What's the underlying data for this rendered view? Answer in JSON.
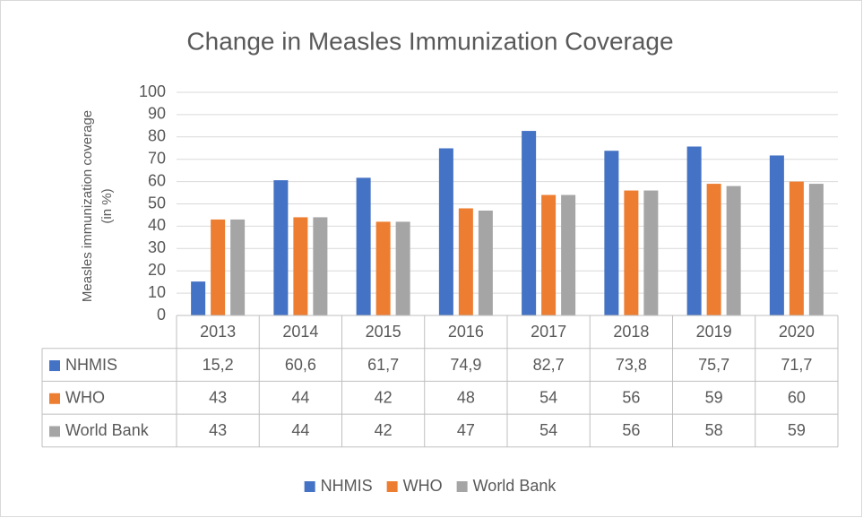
{
  "chart_data": {
    "type": "bar",
    "title": "Change in Measles Immunization Coverage",
    "y_label": [
      "Measles immunization coverage",
      "(in %)"
    ],
    "categories": [
      "2013",
      "2014",
      "2015",
      "2016",
      "2017",
      "2018",
      "2019",
      "2020"
    ],
    "series": [
      {
        "name": "NHMIS",
        "color": "#4472c4",
        "values": [
          15.2,
          60.6,
          61.7,
          74.9,
          82.7,
          73.8,
          75.7,
          71.7
        ],
        "value_labels": [
          "15,2",
          "60,6",
          "61,7",
          "74,9",
          "82,7",
          "73,8",
          "75,7",
          "71,7"
        ]
      },
      {
        "name": "WHO",
        "color": "#ed7d31",
        "values": [
          43,
          44,
          42,
          48,
          54,
          56,
          59,
          60
        ]
      },
      {
        "name": "World Bank",
        "color": "#a5a5a5",
        "values": [
          43,
          44,
          42,
          47,
          54,
          56,
          58,
          59
        ]
      }
    ],
    "ylim": [
      0,
      100
    ],
    "yticks": [
      0,
      10,
      20,
      30,
      40,
      50,
      60,
      70,
      80,
      90,
      100
    ],
    "grid": true,
    "legend": "bottom"
  }
}
